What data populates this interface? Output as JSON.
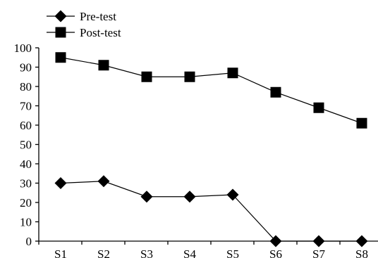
{
  "chart_data": {
    "type": "line",
    "categories": [
      "S1",
      "S2",
      "S3",
      "S4",
      "S5",
      "S6",
      "S7",
      "S8"
    ],
    "series": [
      {
        "name": "Pre-test",
        "marker": "diamond",
        "values": [
          30,
          31,
          23,
          23,
          24,
          0,
          0,
          0
        ]
      },
      {
        "name": "Post-test",
        "marker": "square",
        "values": [
          95,
          91,
          85,
          85,
          87,
          77,
          69,
          61
        ]
      }
    ],
    "yticks": [
      "0",
      "10",
      "20",
      "30",
      "40",
      "50",
      "60",
      "70",
      "80",
      "90",
      "100"
    ],
    "ylim": [
      0,
      100
    ],
    "title": "",
    "xlabel": "",
    "ylabel": "",
    "grid": false,
    "legend_position": "top-left",
    "colors": {
      "line": "#000000",
      "marker": "#000000"
    }
  }
}
